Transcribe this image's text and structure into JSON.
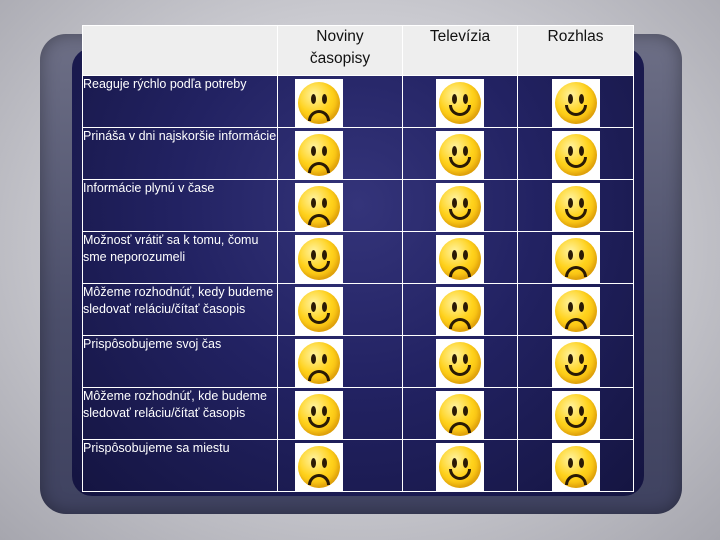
{
  "headers": [
    "",
    "Noviny\nčasopisy",
    "Televízia",
    "Rozhlas"
  ],
  "rows": [
    {
      "label": "Reaguje rýchlo podľa potreby",
      "faces": [
        "sad-face-icon",
        "happy-face-icon",
        "happy-face-icon"
      ]
    },
    {
      "label": "Prináša v dni najskoršie informácie",
      "faces": [
        "sad-face-icon",
        "happy-face-icon",
        "happy-face-icon"
      ]
    },
    {
      "label": "Informácie plynú v čase",
      "faces": [
        "sad-face-icon",
        "happy-face-icon",
        "happy-face-icon"
      ]
    },
    {
      "label": "Možnosť vrátiť sa k tomu, čomu sme neporozumeli",
      "faces": [
        "happy-face-icon",
        "sad-face-icon",
        "sad-face-icon"
      ]
    },
    {
      "label": "Môžeme rozhodnúť, kedy budeme sledovať reláciu/čítať časopis",
      "faces": [
        "happy-face-icon",
        "sad-face-icon",
        "sad-face-icon"
      ]
    },
    {
      "label": "Prispôsobujeme svoj čas",
      "faces": [
        "sad-face-icon",
        "happy-face-icon",
        "happy-face-icon"
      ]
    },
    {
      "label": "Môžeme rozhodnúť, kde budeme sledovať reláciu/čítať časopis",
      "faces": [
        "happy-face-icon",
        "sad-face-icon",
        "happy-face-icon"
      ]
    },
    {
      "label": "Prispôsobujeme sa miestu",
      "faces": [
        "sad-face-icon",
        "happy-face-icon",
        "sad-face-icon"
      ]
    }
  ],
  "colors": {
    "face": "#ffd21c",
    "label_text": "#ffffff",
    "grid_line": "#ffffff"
  }
}
